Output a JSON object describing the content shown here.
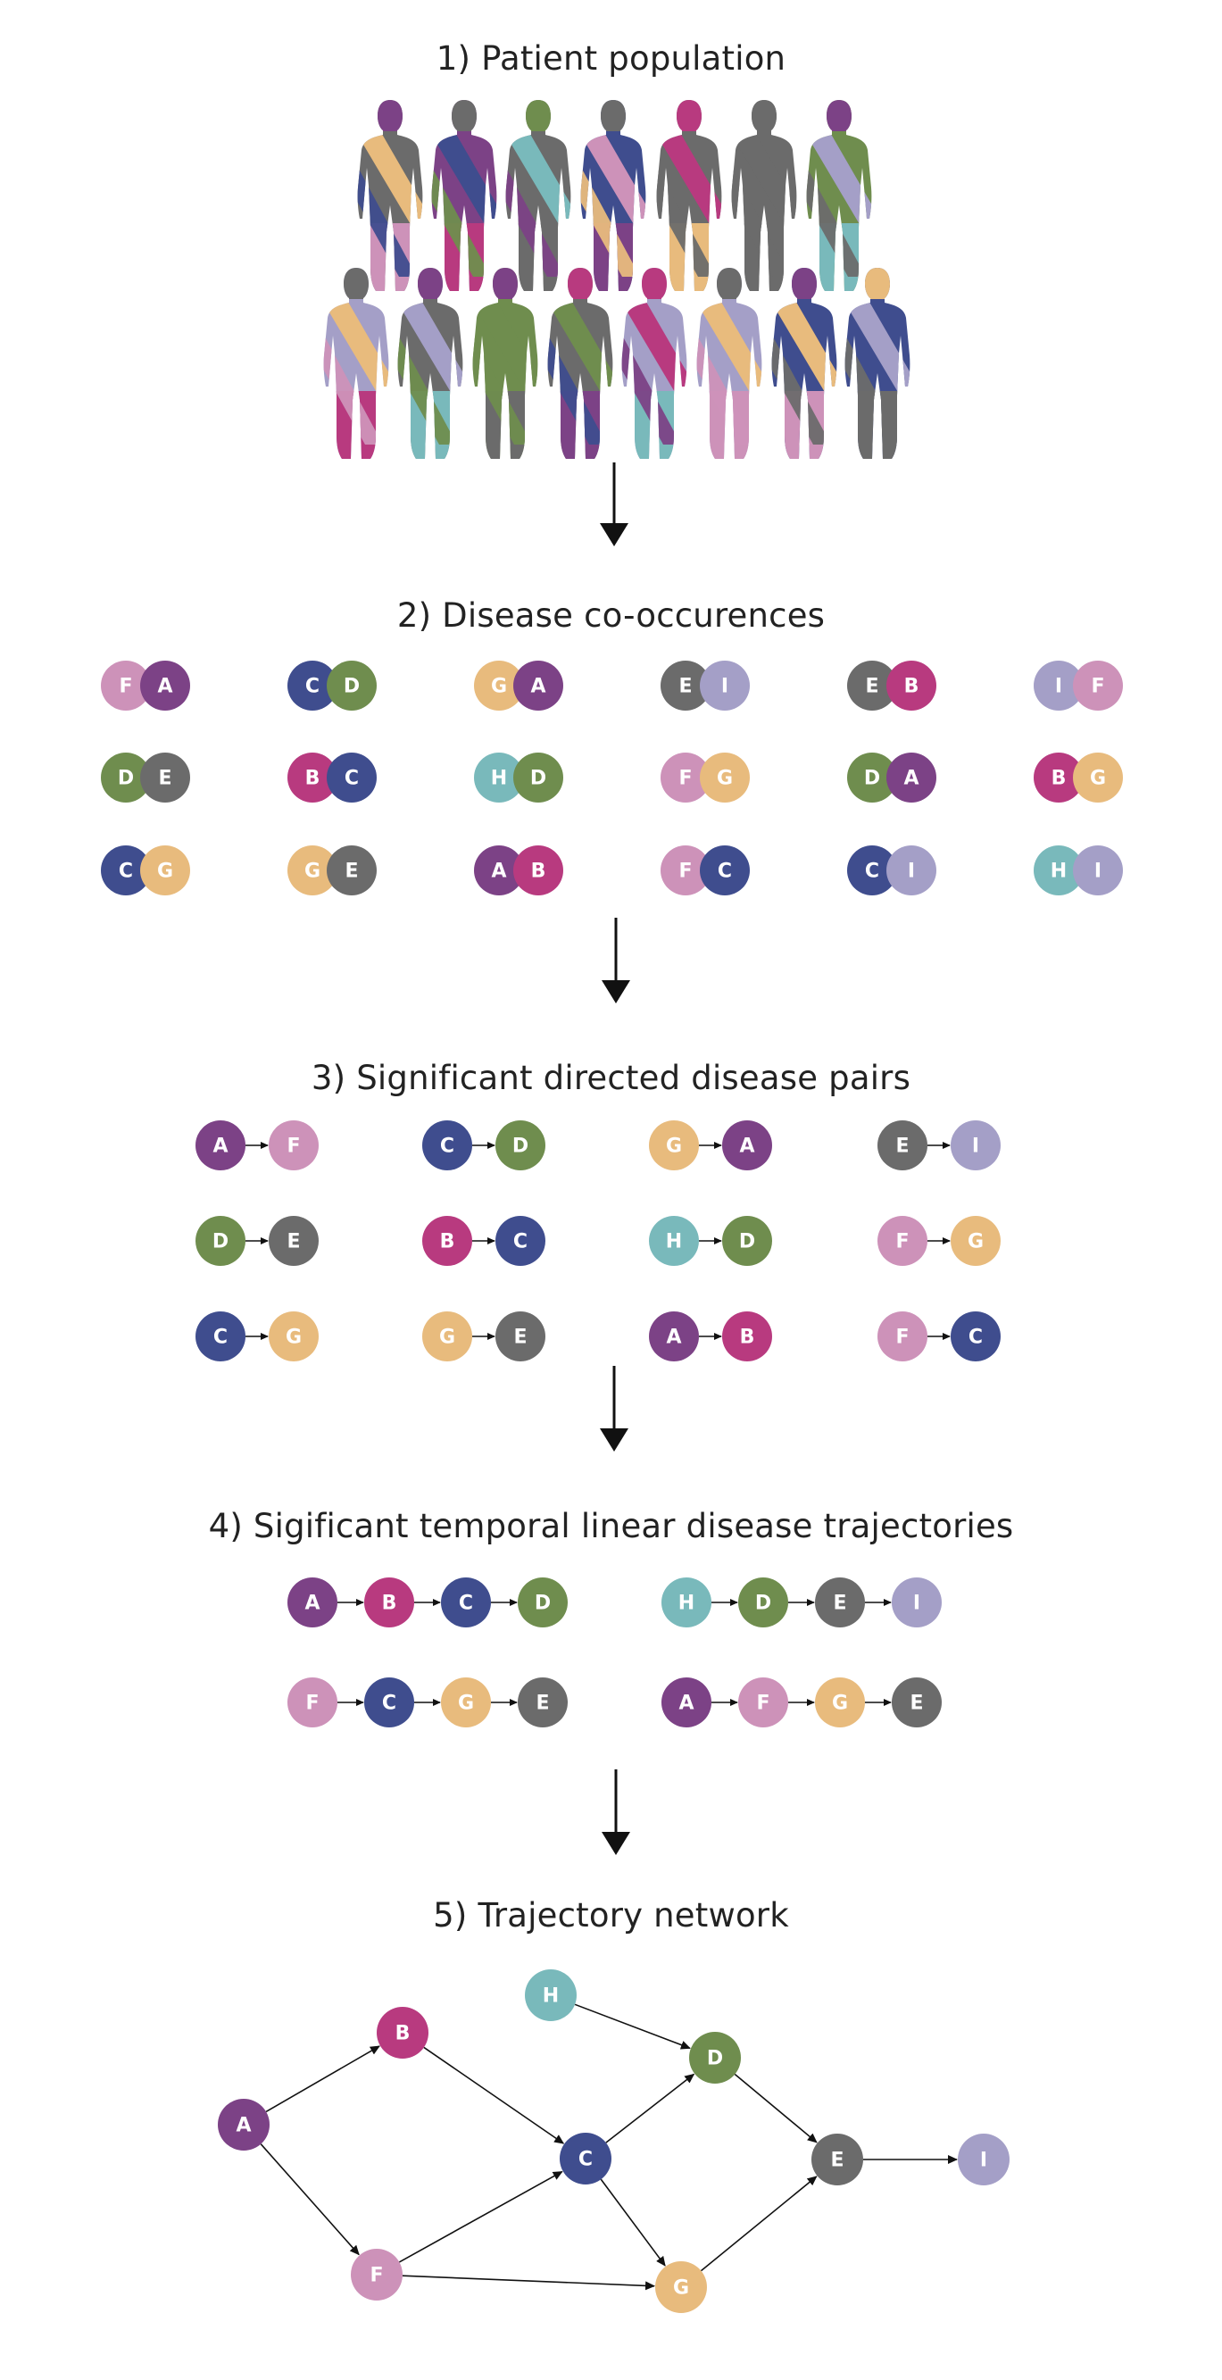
{
  "colors": {
    "A": "#7c4286",
    "B": "#b83a7f",
    "C": "#3f4d8e",
    "D": "#6f8d4e",
    "E": "#6b6b6b",
    "F": "#cd92b9",
    "G": "#e8bb7d",
    "H": "#79b9bb",
    "I": "#a49fc7"
  },
  "sections": {
    "s1": {
      "title": "1) Patient population"
    },
    "s2": {
      "title": "2) Disease co-occurences"
    },
    "s3": {
      "title": "3) Significant directed disease pairs"
    },
    "s4": {
      "title": "4) Sigificant temporal linear disease trajectories"
    },
    "s5": {
      "title": "5) Trajectory network"
    }
  },
  "patients": {
    "row1": [
      {
        "base": "#6b6b6b",
        "head": "#7c4286",
        "stripe1": "#e8bb7d",
        "stripe2": "#3f4d8e",
        "legs": "#cd92b9"
      },
      {
        "base": "#7c4286",
        "head": "#6b6b6b",
        "stripe1": "#3f4d8e",
        "stripe2": "#6f8d4e",
        "legs": "#b83a7f"
      },
      {
        "base": "#6b6b6b",
        "head": "#6f8d4e",
        "stripe1": "#79b9bb",
        "stripe2": "#7c4286",
        "legs": "#6b6b6b"
      },
      {
        "base": "#3f4d8e",
        "head": "#6b6b6b",
        "stripe1": "#cd92b9",
        "stripe2": "#e8bb7d",
        "legs": "#7c4286"
      },
      {
        "base": "#6b6b6b",
        "head": "#b83a7f",
        "stripe1": "#b83a7f",
        "stripe2": "#6b6b6b",
        "legs": "#e8bb7d"
      },
      {
        "base": "#6b6b6b",
        "head": "#6b6b6b",
        "stripe1": "#6b6b6b",
        "stripe2": "#6b6b6b",
        "legs": "#6b6b6b"
      },
      {
        "base": "#6f8d4e",
        "head": "#7c4286",
        "stripe1": "#a49fc7",
        "stripe2": "#6b6b6b",
        "legs": "#79b9bb"
      }
    ],
    "row2": [
      {
        "base": "#a49fc7",
        "head": "#6b6b6b",
        "stripe1": "#e8bb7d",
        "stripe2": "#cd92b9",
        "legs": "#b83a7f"
      },
      {
        "base": "#6b6b6b",
        "head": "#7c4286",
        "stripe1": "#a49fc7",
        "stripe2": "#6f8d4e",
        "legs": "#79b9bb"
      },
      {
        "base": "#6f8d4e",
        "head": "#7c4286",
        "stripe1": "#6f8d4e",
        "stripe2": "#6f8d4e",
        "legs": "#6b6b6b"
      },
      {
        "base": "#6b6b6b",
        "head": "#b83a7f",
        "stripe1": "#6f8d4e",
        "stripe2": "#3f4d8e",
        "legs": "#7c4286"
      },
      {
        "base": "#a49fc7",
        "head": "#b83a7f",
        "stripe1": "#b83a7f",
        "stripe2": "#7c4286",
        "legs": "#79b9bb"
      },
      {
        "base": "#a49fc7",
        "head": "#6b6b6b",
        "stripe1": "#e8bb7d",
        "stripe2": "#cd92b9",
        "legs": "#cd92b9"
      },
      {
        "base": "#3f4d8e",
        "head": "#7c4286",
        "stripe1": "#e8bb7d",
        "stripe2": "#6b6b6b",
        "legs": "#cd92b9"
      },
      {
        "base": "#3f4d8e",
        "head": "#e8bb7d",
        "stripe1": "#a49fc7",
        "stripe2": "#6b6b6b",
        "legs": "#6b6b6b"
      }
    ]
  },
  "cooccurrences": [
    [
      "F",
      "A"
    ],
    [
      "C",
      "D"
    ],
    [
      "G",
      "A"
    ],
    [
      "E",
      "I"
    ],
    [
      "E",
      "B"
    ],
    [
      "I",
      "F"
    ],
    [
      "D",
      "E"
    ],
    [
      "B",
      "C"
    ],
    [
      "H",
      "D"
    ],
    [
      "F",
      "G"
    ],
    [
      "D",
      "A"
    ],
    [
      "B",
      "G"
    ],
    [
      "C",
      "G"
    ],
    [
      "G",
      "E"
    ],
    [
      "A",
      "B"
    ],
    [
      "F",
      "C"
    ],
    [
      "C",
      "I"
    ],
    [
      "H",
      "I"
    ]
  ],
  "directed_pairs": [
    [
      "A",
      "F"
    ],
    [
      "C",
      "D"
    ],
    [
      "G",
      "A"
    ],
    [
      "E",
      "I"
    ],
    [
      "D",
      "E"
    ],
    [
      "B",
      "C"
    ],
    [
      "H",
      "D"
    ],
    [
      "F",
      "G"
    ],
    [
      "C",
      "G"
    ],
    [
      "G",
      "E"
    ],
    [
      "A",
      "B"
    ],
    [
      "F",
      "C"
    ]
  ],
  "trajectories": [
    [
      "A",
      "B",
      "C",
      "D"
    ],
    [
      "H",
      "D",
      "E",
      "I"
    ],
    [
      "F",
      "C",
      "G",
      "E"
    ],
    [
      "A",
      "F",
      "G",
      "E"
    ]
  ],
  "network": {
    "nodes": [
      "A",
      "B",
      "C",
      "D",
      "E",
      "F",
      "G",
      "H",
      "I"
    ],
    "edges": [
      [
        "A",
        "B"
      ],
      [
        "A",
        "F"
      ],
      [
        "B",
        "C"
      ],
      [
        "F",
        "C"
      ],
      [
        "F",
        "G"
      ],
      [
        "C",
        "D"
      ],
      [
        "C",
        "G"
      ],
      [
        "H",
        "D"
      ],
      [
        "D",
        "E"
      ],
      [
        "G",
        "E"
      ],
      [
        "E",
        "I"
      ]
    ]
  }
}
